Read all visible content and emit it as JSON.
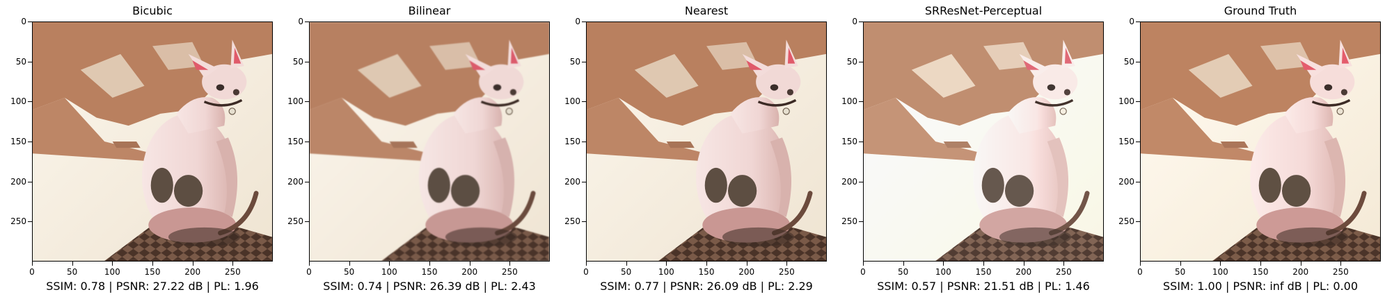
{
  "panels": [
    {
      "title": "Bicubic",
      "metrics": "SSIM: 0.78 | PSNR: 27.22 dB | PL: 1.96",
      "filter": "saturate(1.0) brightness(1.0)"
    },
    {
      "title": "Bilinear",
      "metrics": "SSIM: 0.74 | PSNR: 26.39 dB | PL: 2.43",
      "filter": "saturate(0.95) brightness(1.0) blur(0.6px)"
    },
    {
      "title": "Nearest",
      "metrics": "SSIM: 0.77 | PSNR: 26.09 dB | PL: 2.29",
      "filter": "saturate(1.0) brightness(1.0)"
    },
    {
      "title": "SRResNet-Perceptual",
      "metrics": "SSIM: 0.57 | PSNR: 21.51 dB | PL: 1.46",
      "filter": "saturate(0.85) brightness(1.1) contrast(0.95)"
    },
    {
      "title": "Ground Truth",
      "metrics": "SSIM: 1.00 | PSNR: inf dB | PL: 0.00",
      "filter": "saturate(1.0) brightness(1.02)"
    }
  ],
  "axes": {
    "x_ticks": [
      "0",
      "50",
      "100",
      "150",
      "200",
      "250"
    ],
    "y_ticks": [
      "0",
      "50",
      "100",
      "150",
      "200",
      "250"
    ]
  },
  "colors": {
    "carpet_shadow": "#b9805f",
    "carpet_light": "#f6f0e4",
    "cat_body": "#f0d6d4",
    "cat_patch": "#5d4e42",
    "ear_inner": "#e05a6a",
    "rug": "#4a3328"
  }
}
